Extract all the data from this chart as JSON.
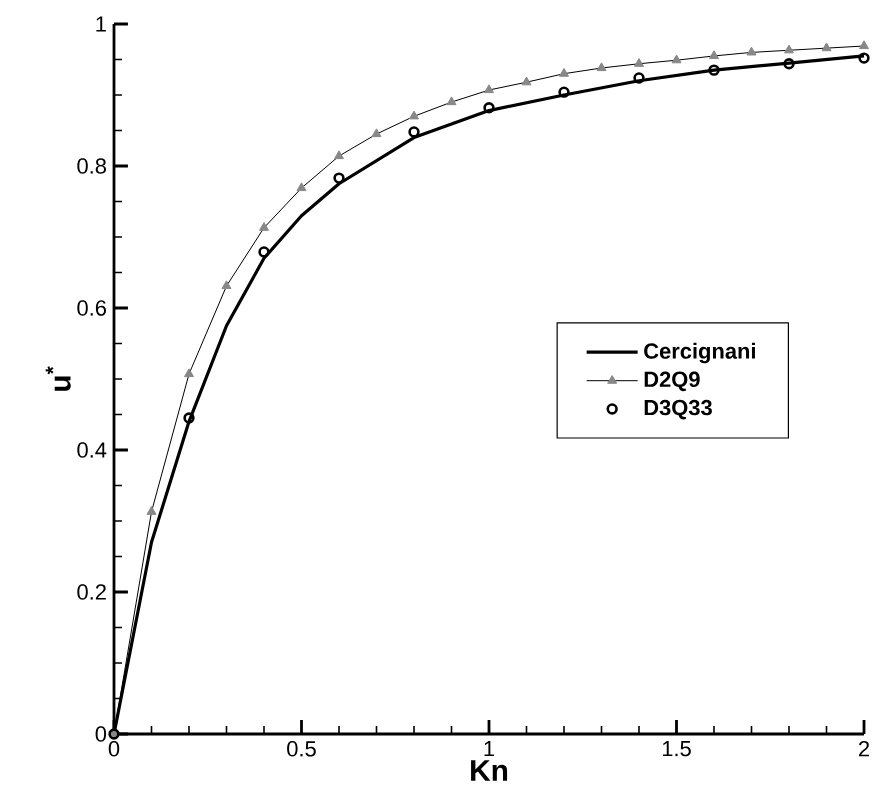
{
  "chart_data": {
    "type": "line",
    "xlabel": "Kn",
    "ylabel": "u$^{*}$",
    "xlim": [
      0,
      2
    ],
    "ylim": [
      0,
      1
    ],
    "xticks": [
      0,
      0.5,
      1,
      1.5,
      2
    ],
    "yticks": [
      0,
      0.2,
      0.4,
      0.6,
      0.8,
      1
    ],
    "legend": "right",
    "series": [
      {
        "name": "Cercignani",
        "marker": "none",
        "color": "#000000",
        "x": [
          0,
          0.1,
          0.2,
          0.3,
          0.4,
          0.5,
          0.6,
          0.8,
          1.0,
          1.2,
          1.4,
          1.6,
          1.8,
          2.0
        ],
        "values": [
          0,
          0.27,
          0.44,
          0.575,
          0.67,
          0.73,
          0.775,
          0.84,
          0.878,
          0.9,
          0.92,
          0.935,
          0.945,
          0.955
        ]
      },
      {
        "name": "D2Q9",
        "marker": "triangle",
        "color": "#888888",
        "x": [
          0,
          0.1,
          0.2,
          0.3,
          0.4,
          0.5,
          0.6,
          0.7,
          0.8,
          0.9,
          1.0,
          1.1,
          1.2,
          1.3,
          1.4,
          1.5,
          1.6,
          1.7,
          1.8,
          1.9,
          2.0
        ],
        "values": [
          0,
          0.313,
          0.507,
          0.631,
          0.713,
          0.769,
          0.814,
          0.845,
          0.87,
          0.89,
          0.907,
          0.918,
          0.93,
          0.938,
          0.944,
          0.949,
          0.955,
          0.96,
          0.963,
          0.966,
          0.969
        ]
      },
      {
        "name": "D3Q33",
        "type": "scatter",
        "marker": "circle",
        "color": "#000000",
        "x": [
          0,
          0.2,
          0.4,
          0.6,
          0.8,
          1.0,
          1.2,
          1.4,
          1.6,
          1.8,
          2.0
        ],
        "values": [
          0,
          0.445,
          0.679,
          0.783,
          0.848,
          0.882,
          0.904,
          0.924,
          0.935,
          0.944,
          0.952
        ]
      }
    ]
  }
}
